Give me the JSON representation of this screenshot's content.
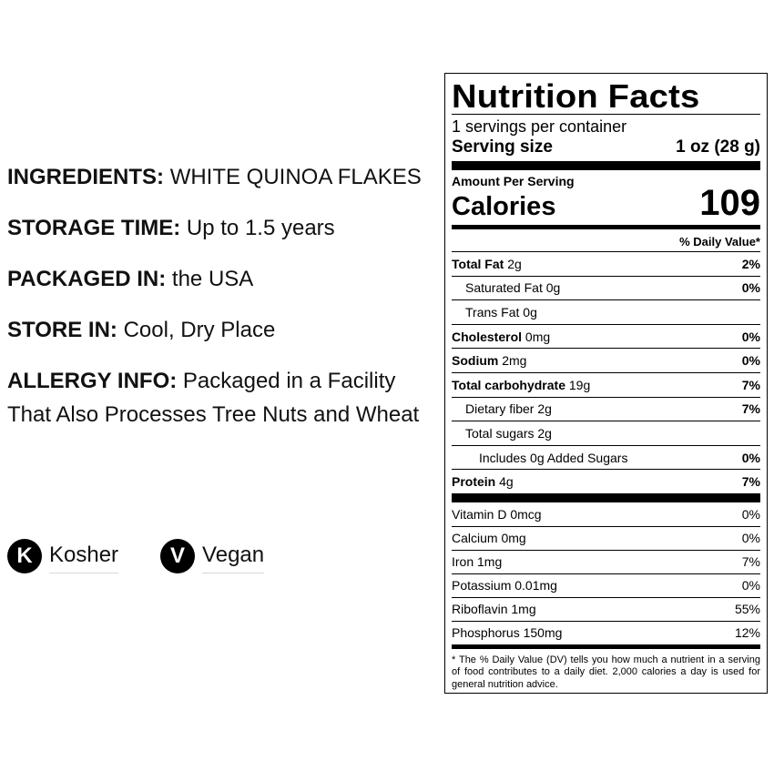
{
  "info": {
    "ingredients": {
      "label": "INGREDIENTS:",
      "value": "WHITE QUINOA FLAKES"
    },
    "storage_time": {
      "label": "STORAGE TIME:",
      "value": "Up to 1.5 years"
    },
    "packaged_in": {
      "label": "PACKAGED IN:",
      "value": "the USA"
    },
    "store_in": {
      "label": "STORE IN:",
      "value": "Cool, Dry Place"
    },
    "allergy": {
      "label": "ALLERGY INFO:",
      "value": "Packaged in a Facility That Also Processes Tree Nuts and Wheat"
    }
  },
  "badges": [
    {
      "letter": "K",
      "label": "Kosher",
      "icon": "kosher-icon"
    },
    {
      "letter": "V",
      "label": "Vegan",
      "icon": "vegan-icon"
    }
  ],
  "nutrition": {
    "title": "Nutrition Facts",
    "servings": "1 servings per container",
    "serving_size_label": "Serving size",
    "serving_size_value": "1 oz (28 g)",
    "amount_per_serving": "Amount Per Serving",
    "calories_label": "Calories",
    "calories_value": "109",
    "dv_header": "% Daily Value*",
    "nutrients": [
      {
        "name": "Total Fat",
        "amount": "2g",
        "dv": "2%"
      },
      {
        "name": "Saturated Fat",
        "amount": "0g",
        "dv": "0%"
      },
      {
        "name": "Trans Fat",
        "amount": "0g",
        "dv": ""
      },
      {
        "name": "Cholesterol",
        "amount": "0mg",
        "dv": "0%"
      },
      {
        "name": "Sodium",
        "amount": "2mg",
        "dv": "0%"
      },
      {
        "name": "Total carbohydrate",
        "amount": "19g",
        "dv": "7%"
      },
      {
        "name": "Dietary fiber",
        "amount": "2g",
        "dv": "7%"
      },
      {
        "name": "Total sugars",
        "amount": "2g",
        "dv": ""
      },
      {
        "name": "Includes 0g Added Sugars",
        "amount": "",
        "dv": "0%"
      },
      {
        "name": "Protein",
        "amount": "4g",
        "dv": "7%"
      }
    ],
    "vitamins": [
      {
        "name": "Vitamin D 0mcg",
        "dv": "0%"
      },
      {
        "name": "Calcium 0mg",
        "dv": "0%"
      },
      {
        "name": "Iron 1mg",
        "dv": "7%"
      },
      {
        "name": "Potassium 0.01mg",
        "dv": "0%"
      },
      {
        "name": "Riboflavin 1mg",
        "dv": "55%"
      },
      {
        "name": "Phosphorus 150mg",
        "dv": "12%"
      }
    ],
    "footnote": "* The % Daily Value (DV) tells you how much a nutrient in a serving of food contributes to a daily diet. 2,000 calories a day is used for general nutrition advice."
  }
}
